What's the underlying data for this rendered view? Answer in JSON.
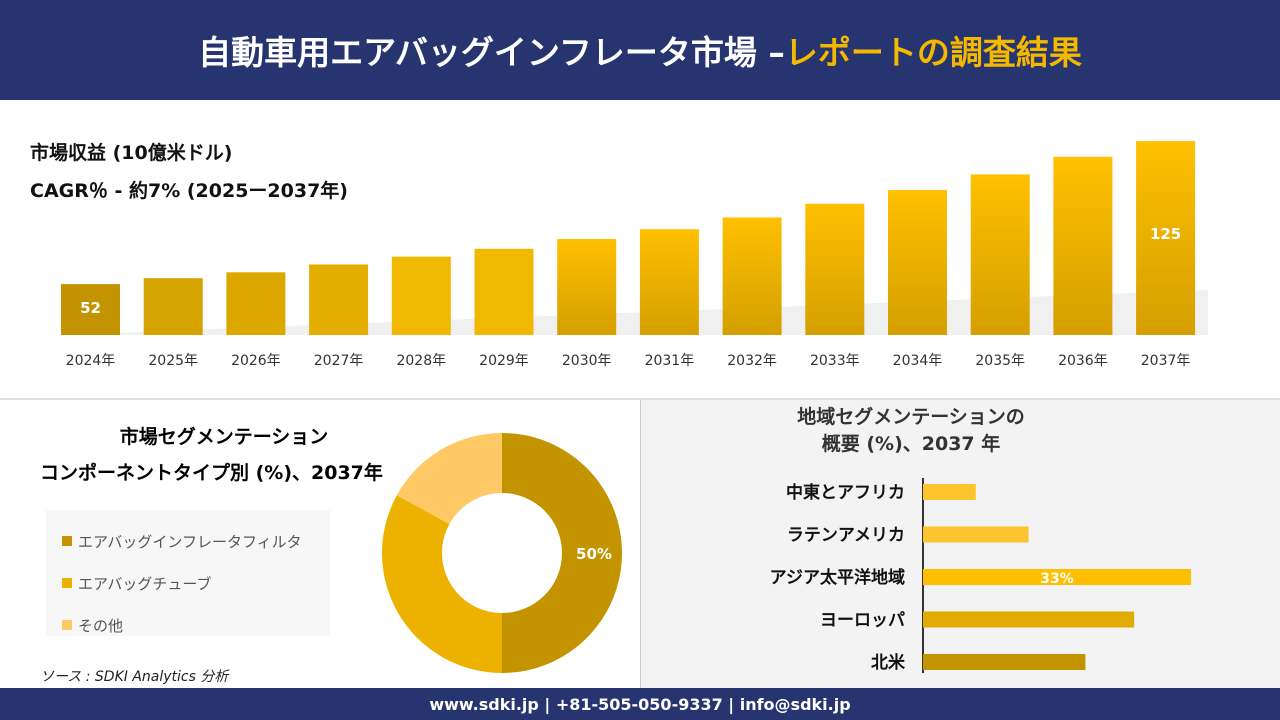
{
  "header": {
    "title_main": "自動車用エアバッグインフレータ市場 –",
    "title_highlight": "レポートの調査結果"
  },
  "colors": {
    "header_bg": "#26346f",
    "highlight": "#f5b800",
    "bar_dark": "#c49300",
    "bar_mid": "#edb200",
    "bar_light": "#ffc966"
  },
  "chart_data": [
    {
      "type": "bar",
      "title": "市場収益 (10億米ドル)",
      "subtitle": "CAGR％ - 約7% (2025ー2037年)",
      "categories": [
        "2024年",
        "2025年",
        "2026年",
        "2027年",
        "2028年",
        "2029年",
        "2030年",
        "2031年",
        "2032年",
        "2033年",
        "2034年",
        "2035年",
        "2036年",
        "2037年"
      ],
      "values": [
        52,
        55,
        58,
        62,
        66,
        70,
        75,
        80,
        86,
        93,
        100,
        108,
        117,
        125
      ],
      "data_labels": {
        "0": "52",
        "13": "125"
      }
    },
    {
      "type": "pie",
      "title": "市場セグメンテーション",
      "subtitle": "コンポーネントタイプ別 (%)、2037年",
      "slices": [
        {
          "name": "エアバッグインフレータフィルタ",
          "value": 50,
          "label": "50%",
          "color": "#c49300"
        },
        {
          "name": "エアバッグチューブ",
          "value": 33,
          "color": "#edb200"
        },
        {
          "name": "その他",
          "value": 17,
          "color": "#ffc966"
        }
      ]
    },
    {
      "type": "bar",
      "orientation": "horizontal",
      "title_line1": "地域セグメンテーションの",
      "title_line2": "概要 (%)、2037 年",
      "categories": [
        "中東とアフリカ",
        "ラテンアメリカ",
        "アジア太平洋地域",
        "ヨーロッパ",
        "北米"
      ],
      "values": [
        6.5,
        13,
        33,
        26,
        20
      ],
      "data_labels": {
        "2": "33%"
      },
      "colors": [
        "#fec42e",
        "#fec42e",
        "#fdbf00",
        "#e2ab00",
        "#c49300"
      ]
    }
  ],
  "source": "ソース : SDKI Analytics 分析",
  "footer": "www.sdki.jp | +81-505-050-9337 | info@sdki.jp"
}
